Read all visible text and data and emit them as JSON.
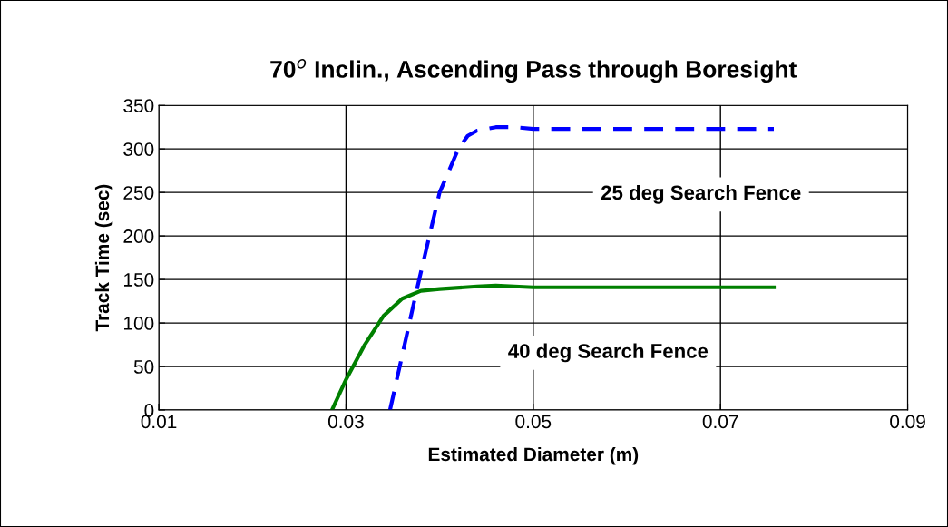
{
  "chart_data": {
    "type": "line",
    "title": "70$^{o}$ Inclin., Ascending Pass through Boresight",
    "xlabel": "Estimated Diameter (m)",
    "ylabel": "Track Time (sec)",
    "xlim": [
      0.01,
      0.09
    ],
    "xticks": [
      0.01,
      0.03,
      0.05,
      0.07,
      0.09
    ],
    "ylim": [
      0,
      350
    ],
    "yticks": [
      0,
      50,
      100,
      150,
      200,
      250,
      300,
      350
    ],
    "grid": true,
    "marker": "none",
    "series": [
      {
        "name": "40 deg Search Fence",
        "color": "#008000",
        "line_style": "solid",
        "x": [
          0.0285,
          0.03,
          0.032,
          0.034,
          0.036,
          0.038,
          0.04,
          0.044,
          0.046,
          0.048,
          0.05,
          0.0757
        ],
        "values": [
          0,
          35,
          75,
          108,
          128,
          137,
          139,
          142,
          143,
          142,
          141,
          141
        ]
      },
      {
        "name": "25 deg Search Fence",
        "color": "#0000ff",
        "line_style": "dashed",
        "x": [
          0.0347,
          0.0376,
          0.04,
          0.042,
          0.043,
          0.044,
          0.046,
          0.048,
          0.05,
          0.0757
        ],
        "values": [
          0,
          140,
          250,
          300,
          315,
          321,
          325,
          325,
          323,
          323
        ]
      }
    ]
  }
}
